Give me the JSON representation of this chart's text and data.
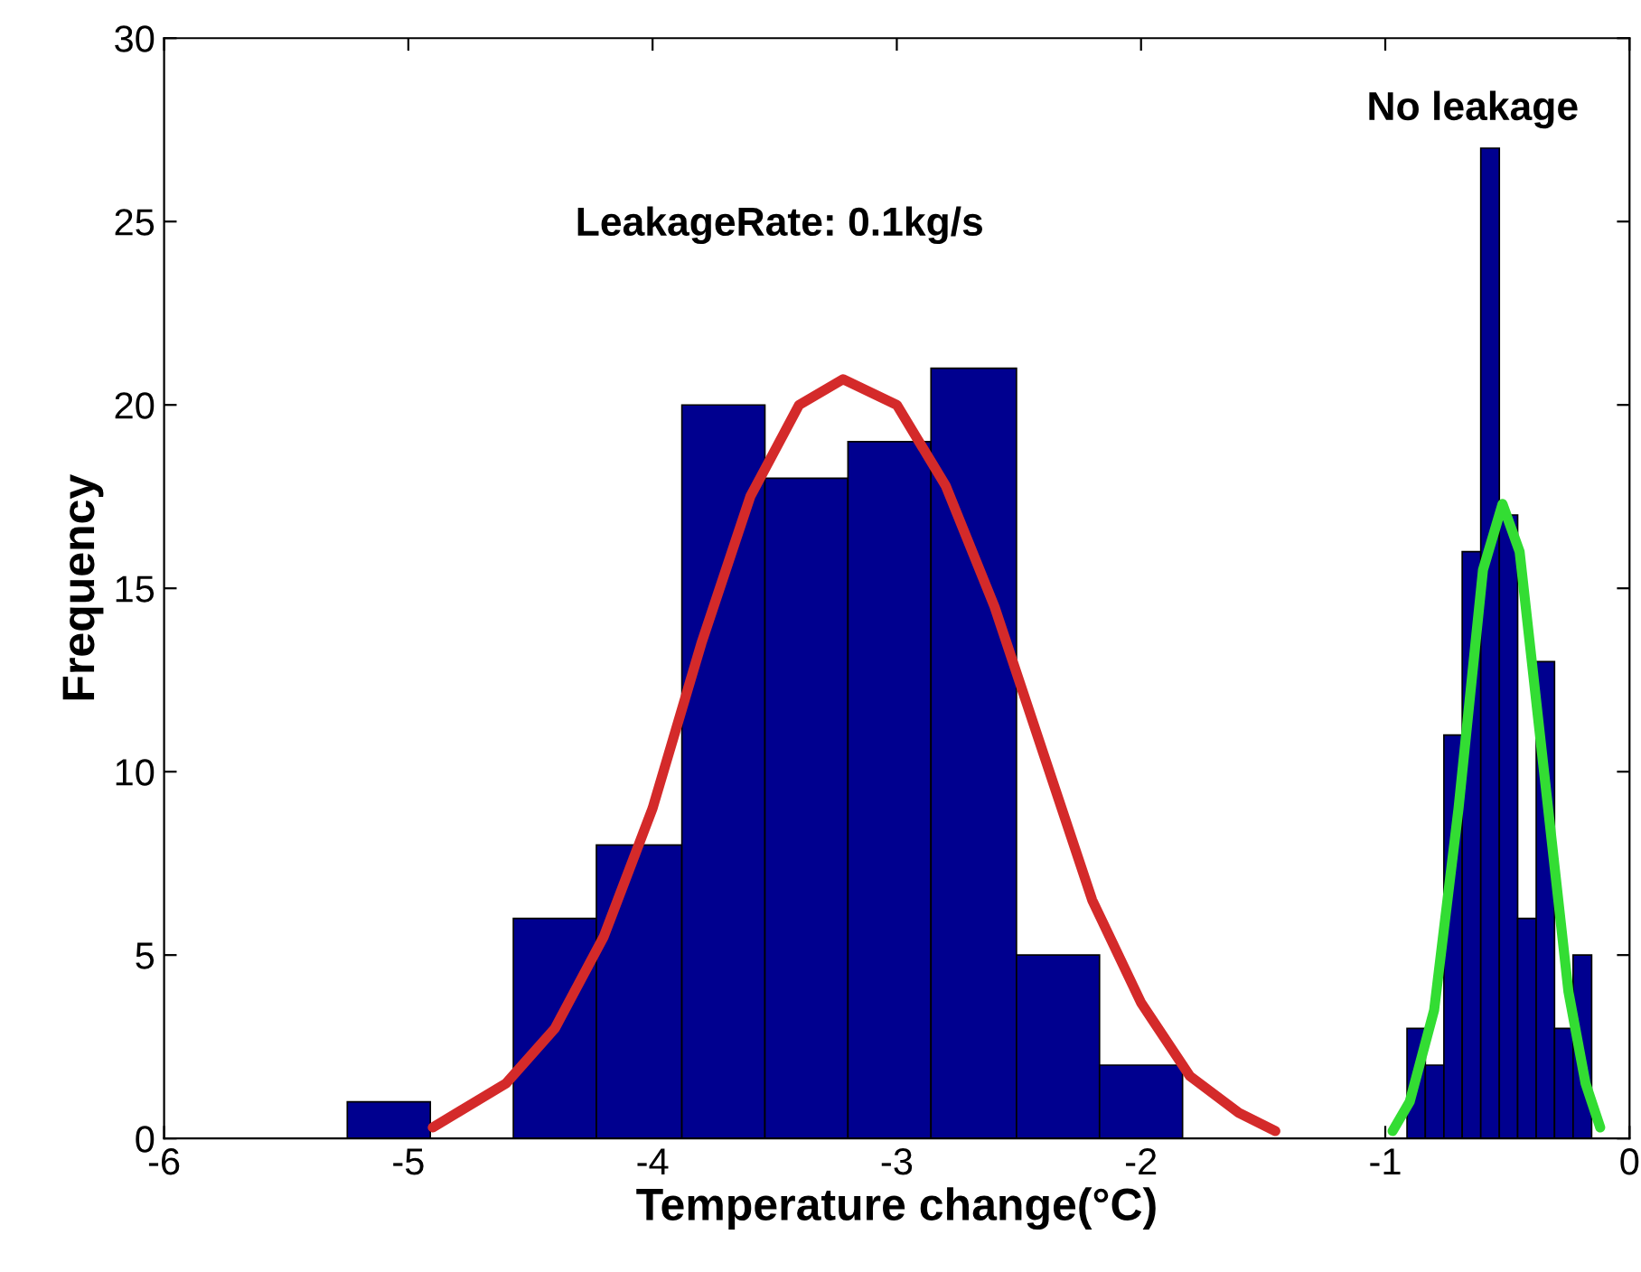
{
  "chart_data": {
    "type": "histogram",
    "xlabel": "Temperature change(°C)",
    "ylabel": "Frequency",
    "xlim": [
      -6,
      0
    ],
    "xticks": [
      -6,
      -5,
      -4,
      -3,
      -2,
      -1,
      0
    ],
    "ylim": [
      0,
      30
    ],
    "yticks": [
      0,
      5,
      10,
      15,
      20,
      25,
      30
    ],
    "grid": false,
    "legend": false,
    "series": [
      {
        "color": "#00008f",
        "bins": [
          -5.25,
          -4.91,
          -4.57,
          -4.23,
          -3.88,
          -3.54,
          -3.2,
          -2.86,
          -2.51,
          -2.17,
          -1.83
        ],
        "values": [
          1,
          0,
          6,
          8,
          20,
          18,
          19,
          21,
          5,
          2
        ]
      },
      {
        "color": "#00008f",
        "bins": [
          -0.911,
          -0.836,
          -0.76,
          -0.685,
          -0.609,
          -0.533,
          -0.458,
          -0.382,
          -0.307,
          -0.231,
          -0.155
        ],
        "values": [
          3,
          2,
          11,
          16,
          27,
          17,
          6,
          13,
          3,
          5
        ]
      },
      {
        "type": "line",
        "color": "#d42a2a",
        "x": [
          -4.9,
          -4.6,
          -4.4,
          -4.2,
          -4.0,
          -3.8,
          -3.6,
          -3.4,
          -3.22,
          -3.0,
          -2.8,
          -2.6,
          -2.4,
          -2.2,
          -2.0,
          -1.8,
          -1.6,
          -1.45
        ],
        "values": [
          0.3,
          1.5,
          3,
          5.5,
          9,
          13.5,
          17.5,
          20,
          20.7,
          20,
          17.8,
          14.5,
          10.5,
          6.5,
          3.7,
          1.7,
          0.7,
          0.2
        ]
      },
      {
        "type": "line",
        "color": "#33dd33",
        "x": [
          -0.97,
          -0.9,
          -0.8,
          -0.7,
          -0.6,
          -0.52,
          -0.45,
          -0.35,
          -0.25,
          -0.18,
          -0.12
        ],
        "values": [
          0.2,
          1,
          3.5,
          9,
          15.5,
          17.3,
          16,
          10,
          4,
          1.5,
          0.3
        ]
      }
    ],
    "annotations": [
      "LeakageRate: 0.1kg/s",
      "No leakage"
    ]
  }
}
